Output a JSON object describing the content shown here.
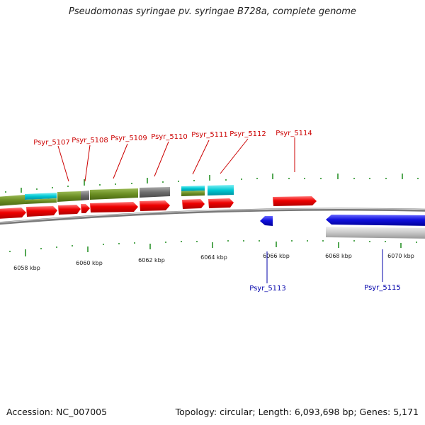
{
  "title": "Pseudomonas syringae pv. syringae B728a, complete genome",
  "footer": {
    "accession": "Accession: NC_007005",
    "summary": "Topology: circular; Length: 6,093,698 bp; Genes: 5,171"
  },
  "colors": {
    "forward_gene": "#ee0000",
    "reverse_gene": "#1010dd",
    "label_forward": "#cc0000",
    "label_reverse": "#0000aa",
    "tick": "#1a8a1a",
    "olive": "#6b8e23",
    "cyan": "#00c8d2",
    "gray": "#6e6e6e",
    "light_gray": "#c8c8c8"
  },
  "axis_labels": [
    "6058 kbp",
    "6060 kbp",
    "6062 kbp",
    "6064 kbp",
    "6066 kbp",
    "6068 kbp",
    "6070 kbp"
  ],
  "gene_labels": [
    {
      "name": "Psyr_5107",
      "strand": "forward"
    },
    {
      "name": "Psyr_5108",
      "strand": "forward"
    },
    {
      "name": "Psyr_5109",
      "strand": "forward"
    },
    {
      "name": "Psyr_5110",
      "strand": "forward"
    },
    {
      "name": "Psyr_5111",
      "strand": "forward"
    },
    {
      "name": "Psyr_5112",
      "strand": "forward"
    },
    {
      "name": "Psyr_5114",
      "strand": "forward"
    },
    {
      "name": "Psyr_5113",
      "strand": "reverse"
    },
    {
      "name": "Psyr_5115",
      "strand": "reverse"
    }
  ]
}
